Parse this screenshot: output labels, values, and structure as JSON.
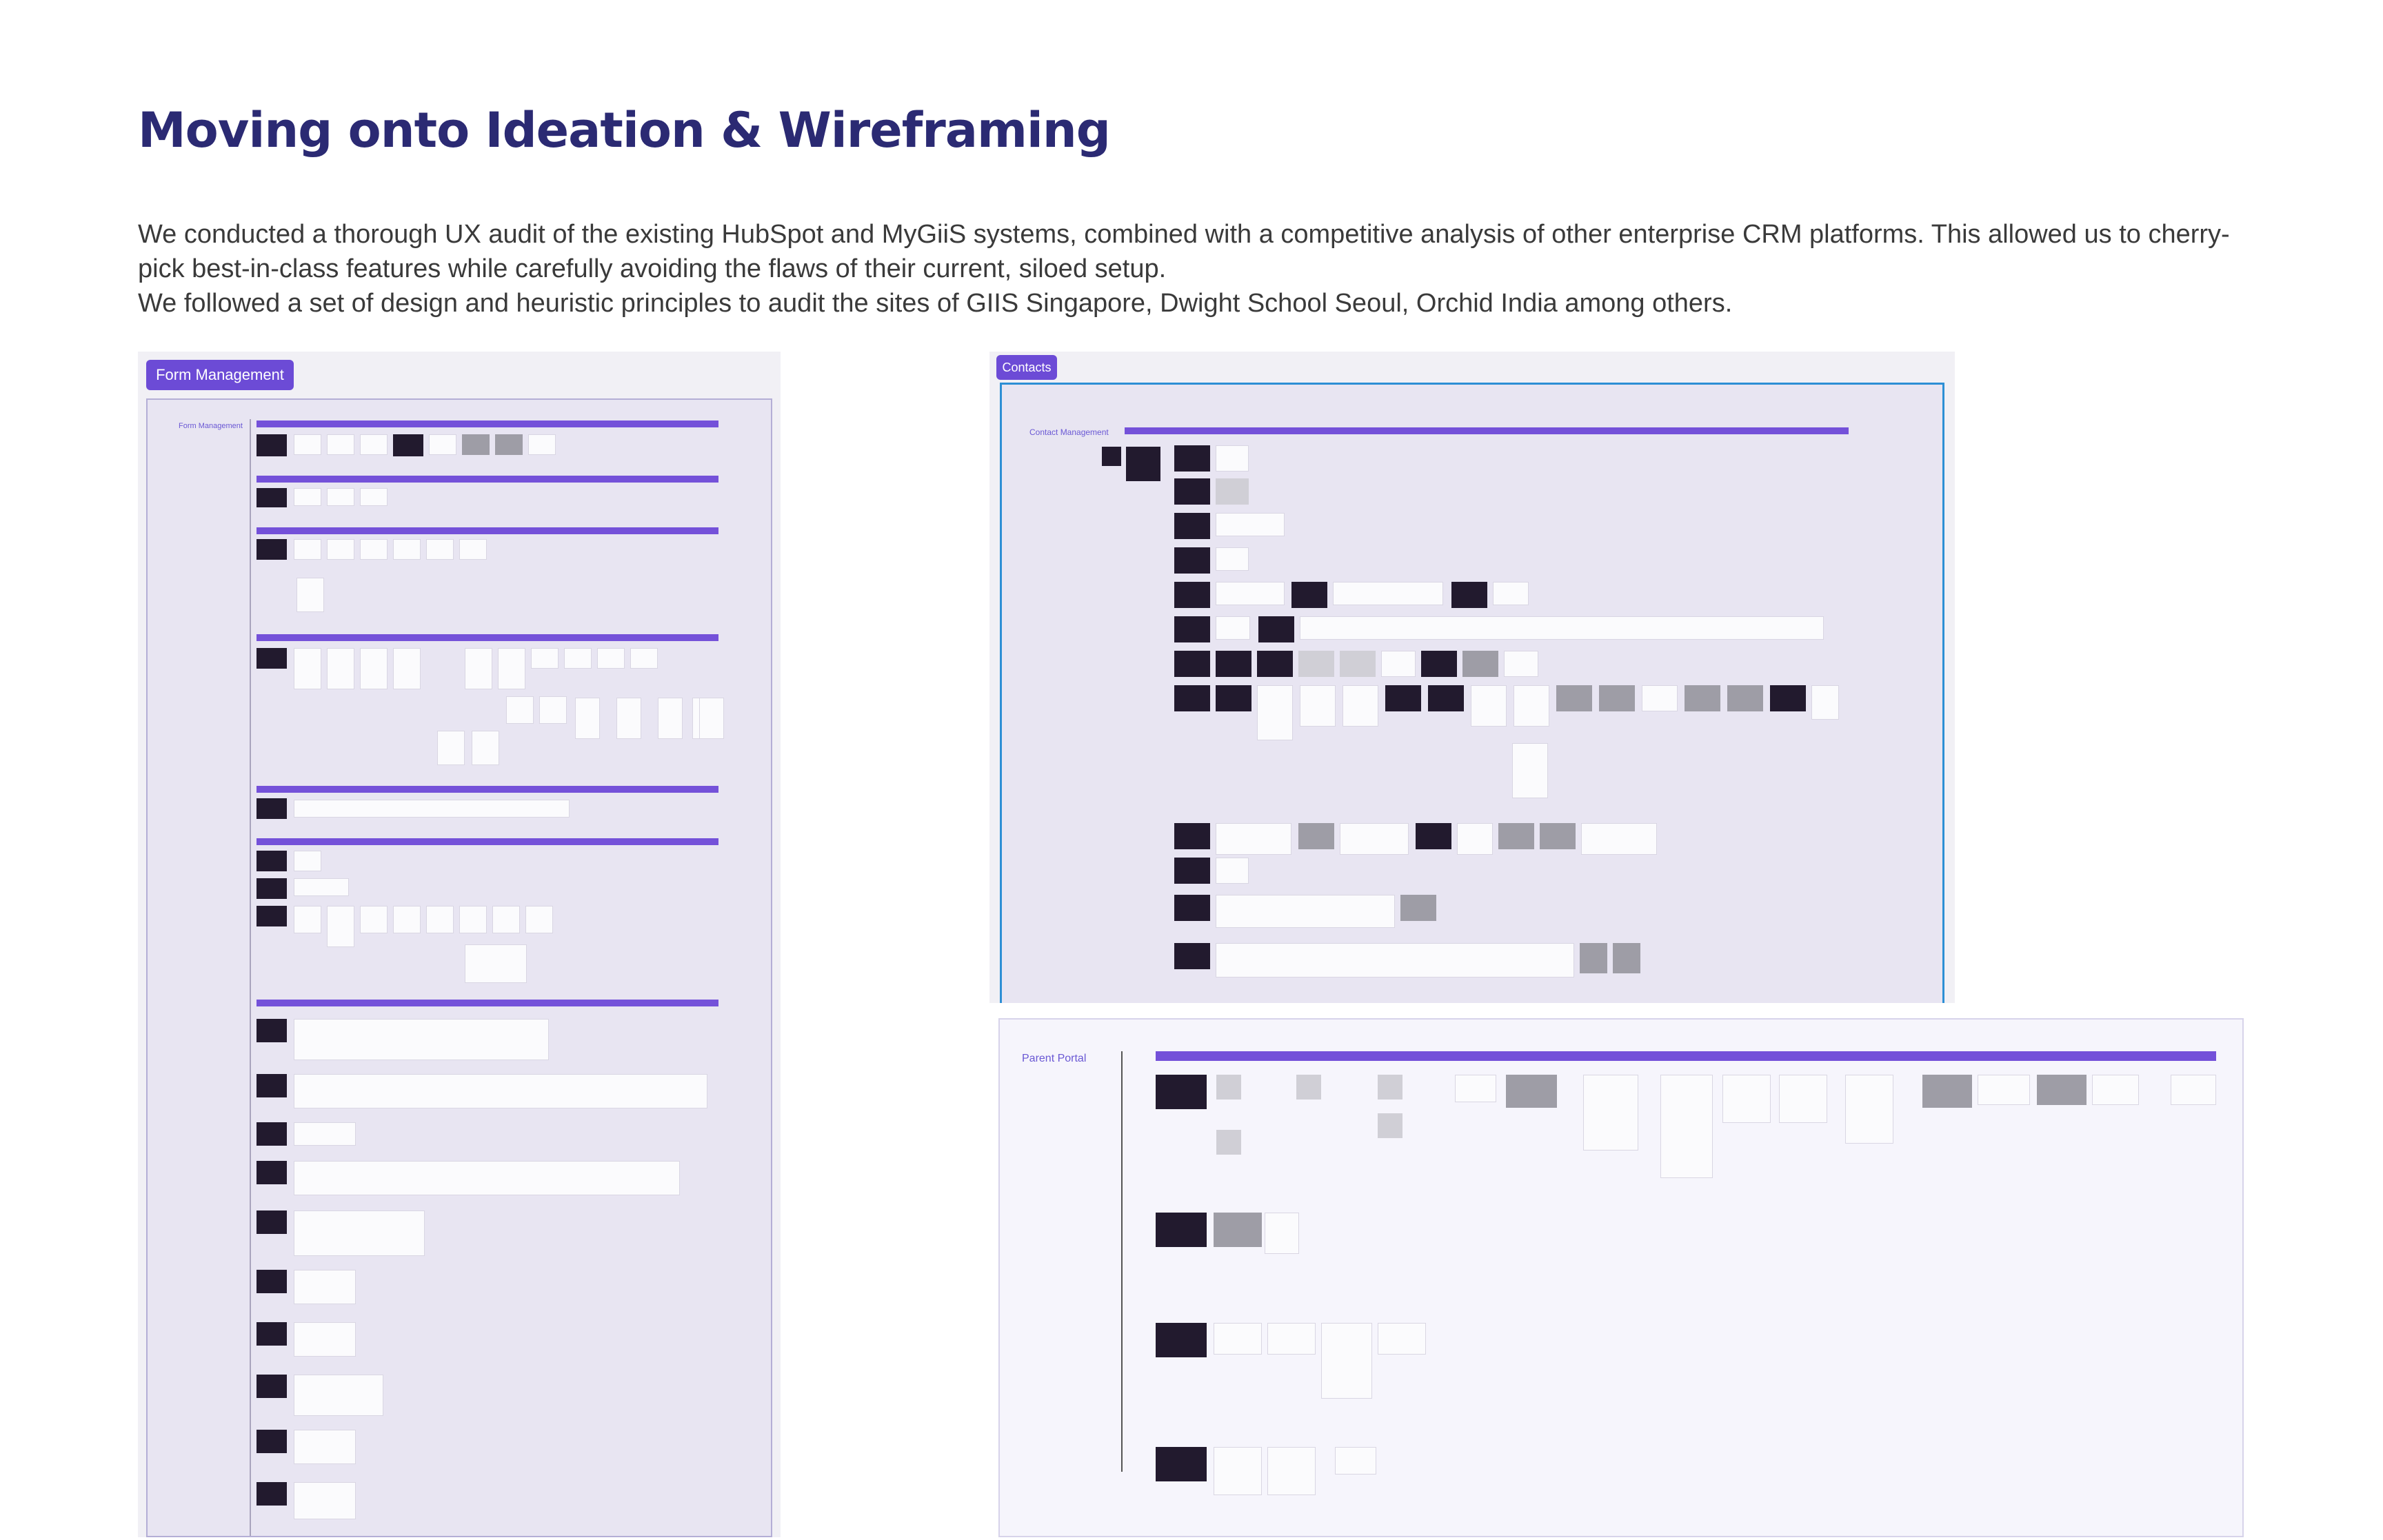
{
  "page": {
    "title": "Moving onto Ideation & Wireframing",
    "intro": [
      "We conducted a thorough UX audit of the existing HubSpot and MyGiiS systems, combined with a competitive analysis of other enterprise CRM platforms. This allowed us to cherry-pick best-in-class features while carefully avoiding the flaws of their current, siloed setup.",
      "We followed a set of design and heuristic principles to audit the sites of GIIS Singapore, Dwight School Seoul, Orchid India among others."
    ]
  },
  "boards": {
    "form_management": {
      "chip": "Form Management",
      "side_label": "Form Management"
    },
    "contacts": {
      "chip": "Contacts",
      "side_label": "Contact Management"
    },
    "parent_portal": {
      "side_label": "Parent Portal"
    }
  },
  "colors": {
    "title": "#2b2a73",
    "accent": "#7451d9",
    "board_bg": "#e8e5f2",
    "portal_bg": "#f6f5fc",
    "selection": "#2d8fd5"
  }
}
